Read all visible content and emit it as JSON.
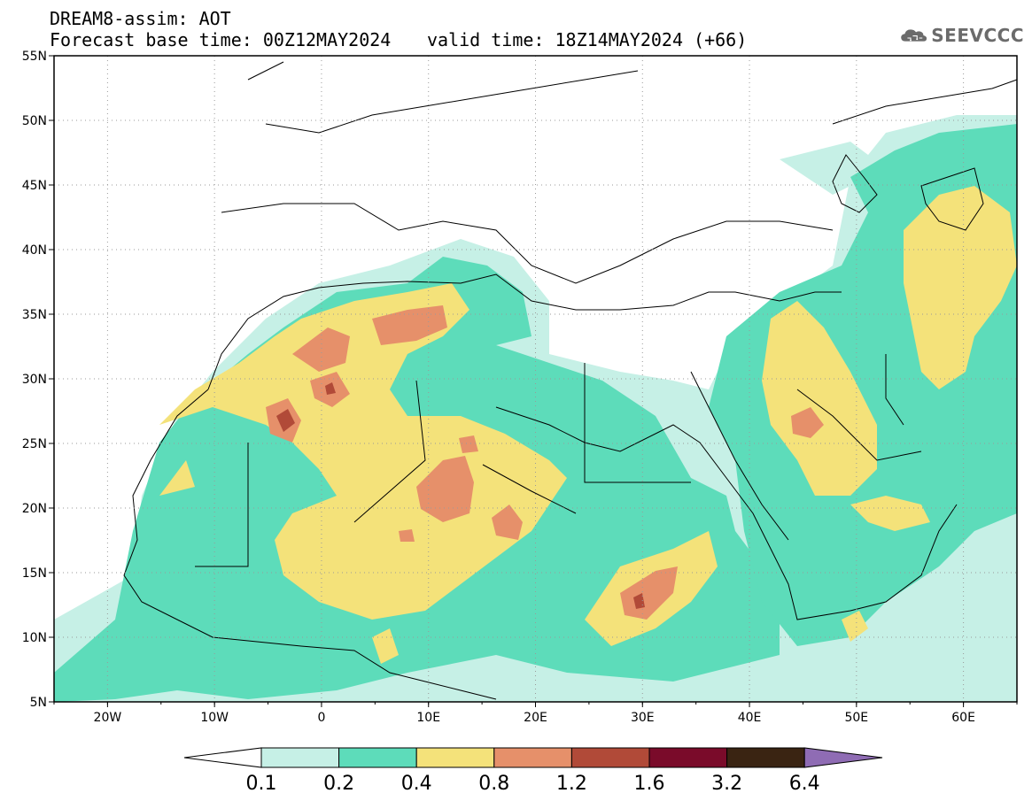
{
  "header": {
    "title": "DREAM8-assim: AOT",
    "base_time": "Forecast base time: 00Z12MAY2024",
    "valid_time": "valid time: 18Z14MAY2024 (+66)",
    "logo": "SEEVCCC"
  },
  "map": {
    "lat_labels": [
      "55N",
      "50N",
      "45N",
      "40N",
      "35N",
      "30N",
      "25N",
      "20N",
      "15N",
      "10N",
      "5N"
    ],
    "lon_labels": [
      "20W",
      "10W",
      "0",
      "10E",
      "20E",
      "30E",
      "40E",
      "50E",
      "60E"
    ]
  },
  "legend": {
    "thresholds": [
      "0.1",
      "0.2",
      "0.4",
      "0.8",
      "1.2",
      "1.6",
      "3.2",
      "6.4"
    ],
    "colors": [
      "#ffffff",
      "#c6f0e6",
      "#5ddcba",
      "#f4e27a",
      "#e6906a",
      "#b14a38",
      "#7a0b2a",
      "#3a2412",
      "#8f6cb4"
    ]
  },
  "colors": {
    "frame": "#000000",
    "grid": "#9a9a9a"
  }
}
